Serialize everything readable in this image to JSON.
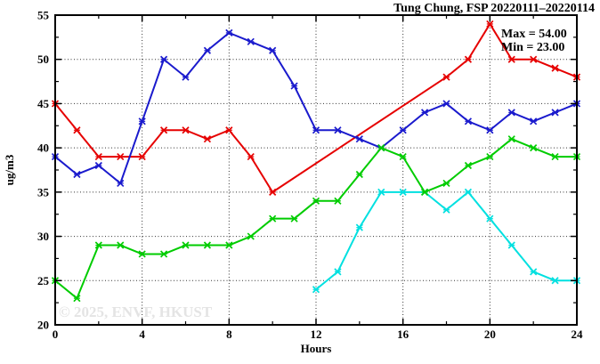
{
  "title": "Tung Chung, FSP 20220111–20220114",
  "annotation": {
    "max_label": "Max = 54.00",
    "min_label": "Min = 23.00"
  },
  "watermark": "© 2025, ENVF, HKUST",
  "colors": {
    "series_red": "#e60000",
    "series_blue": "#1a1acd",
    "series_green": "#00cc00",
    "series_cyan": "#00e0e0",
    "frame": "#000000",
    "grid": "#333333",
    "watermark_gray": "#e4e4e4"
  },
  "chart_data": {
    "type": "line",
    "title": "Tung Chung, FSP 20220111–20220114",
    "xlabel": "Hours",
    "ylabel": "ug/m3",
    "xlim": [
      0,
      24
    ],
    "ylim": [
      20,
      55
    ],
    "grid": "dotted lines at major ticks",
    "legend_position": "none",
    "marker": "x-star",
    "x_major_ticks": [
      0,
      4,
      8,
      12,
      16,
      20,
      24
    ],
    "x_minor_ticks": [
      2,
      6,
      10,
      14,
      18,
      22
    ],
    "y_major_ticks": [
      20,
      25,
      30,
      35,
      40,
      45,
      50,
      55
    ],
    "y_minor_ticks": [
      22.5,
      27.5,
      32.5,
      37.5,
      42.5,
      47.5,
      52.5
    ],
    "x_gridlines": [
      4,
      8,
      12,
      16,
      20
    ],
    "y_gridlines": [
      25,
      30,
      35,
      40,
      45,
      50
    ],
    "x": [
      0,
      1,
      2,
      3,
      4,
      5,
      6,
      7,
      8,
      9,
      10,
      11,
      12,
      13,
      14,
      15,
      16,
      17,
      18,
      19,
      20,
      21,
      22,
      23,
      24
    ],
    "series": [
      {
        "name": "red",
        "color": "#e60000",
        "values": [
          45,
          42,
          39,
          39,
          39,
          42,
          42,
          41,
          42,
          39,
          35,
          null,
          null,
          null,
          null,
          null,
          null,
          null,
          48,
          50,
          54,
          50,
          50,
          49,
          48
        ]
      },
      {
        "name": "blue",
        "color": "#1a1acd",
        "values": [
          39,
          37,
          38,
          36,
          43,
          50,
          48,
          51,
          53,
          52,
          51,
          47,
          42,
          42,
          41,
          40,
          42,
          44,
          45,
          43,
          42,
          44,
          43,
          44,
          45
        ]
      },
      {
        "name": "cyan",
        "color": "#00e0e0",
        "values": [
          null,
          null,
          null,
          null,
          null,
          null,
          null,
          null,
          null,
          null,
          null,
          null,
          24,
          26,
          31,
          35,
          35,
          35,
          33,
          35,
          32,
          29,
          26,
          25,
          25
        ]
      },
      {
        "name": "green",
        "color": "#00cc00",
        "values": [
          25,
          23,
          29,
          29,
          28,
          28,
          29,
          29,
          29,
          30,
          32,
          32,
          34,
          34,
          37,
          40,
          39,
          35,
          36,
          38,
          39,
          41,
          40,
          39,
          39
        ]
      }
    ],
    "stats": {
      "max": 54.0,
      "min": 23.0
    }
  }
}
